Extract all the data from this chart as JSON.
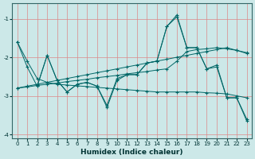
{
  "title": "",
  "xlabel": "Humidex (Indice chaleur)",
  "bg_color": "#cce8e8",
  "grid_color": "#ff9999",
  "line_color": "#006666",
  "xlim": [
    -0.5,
    23.5
  ],
  "ylim": [
    -4.1,
    -0.6
  ],
  "yticks": [
    -4,
    -3,
    -2,
    -1
  ],
  "xticks": [
    0,
    1,
    2,
    3,
    4,
    5,
    6,
    7,
    8,
    9,
    10,
    11,
    12,
    13,
    14,
    15,
    16,
    17,
    18,
    19,
    20,
    21,
    22,
    23
  ],
  "s1_x": [
    0,
    1,
    2,
    3,
    4,
    5,
    6,
    7,
    8,
    9,
    10,
    11,
    12,
    13,
    14,
    15,
    16,
    17,
    18,
    19,
    20,
    21,
    22,
    23
  ],
  "s1_y": [
    -1.6,
    -2.25,
    -2.75,
    -1.95,
    -2.6,
    -2.9,
    -2.7,
    -2.65,
    -2.75,
    -3.25,
    -2.55,
    -2.45,
    -2.45,
    -2.15,
    -2.1,
    -1.2,
    -0.95,
    -1.75,
    -1.75,
    -2.3,
    -2.25,
    -3.05,
    -3.05,
    -3.6
  ],
  "s2_x": [
    0,
    1,
    2,
    3,
    4,
    5,
    6,
    7,
    8,
    9,
    10,
    11,
    12,
    13,
    14,
    15,
    16,
    17,
    18,
    19,
    20,
    21,
    22,
    23
  ],
  "s2_y": [
    -1.6,
    -2.1,
    -2.55,
    -2.65,
    -2.7,
    -2.72,
    -2.74,
    -2.76,
    -2.78,
    -2.8,
    -2.82,
    -2.84,
    -2.86,
    -2.88,
    -2.9,
    -2.9,
    -2.9,
    -2.9,
    -2.9,
    -2.92,
    -2.93,
    -2.95,
    -3.0,
    -3.05
  ],
  "s3_x": [
    0,
    1,
    2,
    3,
    4,
    5,
    6,
    7,
    8,
    9,
    10,
    11,
    12,
    13,
    14,
    15,
    16,
    17,
    18,
    19,
    20,
    21,
    22,
    23
  ],
  "s3_y": [
    -2.8,
    -2.77,
    -2.73,
    -2.7,
    -2.67,
    -2.63,
    -2.6,
    -2.57,
    -2.53,
    -2.5,
    -2.47,
    -2.43,
    -2.4,
    -2.37,
    -2.33,
    -2.3,
    -2.1,
    -1.85,
    -1.8,
    -1.78,
    -1.75,
    -1.78,
    -1.82,
    -1.88
  ],
  "s4_x": [
    2,
    3,
    4,
    5,
    6,
    7,
    8,
    9,
    10,
    11,
    12,
    13,
    14,
    15,
    16,
    17,
    18,
    19,
    20,
    21,
    22,
    23
  ],
  "s4_y": [
    -2.75,
    -1.95,
    -2.6,
    -2.9,
    -2.7,
    -2.65,
    -2.75,
    -3.3,
    -2.6,
    -2.45,
    -2.45,
    -2.15,
    -2.1,
    -1.2,
    -0.9,
    -1.75,
    -1.75,
    -2.3,
    -2.2,
    -3.05,
    -3.05,
    -3.65
  ],
  "s5_x": [
    0,
    1,
    2,
    3,
    4,
    5,
    6,
    7,
    8,
    9,
    10,
    11,
    12,
    13,
    14,
    15,
    16,
    17,
    18,
    19,
    20,
    21,
    22,
    23
  ],
  "s5_y": [
    -2.8,
    -2.75,
    -2.7,
    -2.65,
    -2.6,
    -2.55,
    -2.5,
    -2.45,
    -2.4,
    -2.35,
    -2.3,
    -2.25,
    -2.2,
    -2.15,
    -2.1,
    -2.05,
    -2.0,
    -1.95,
    -1.9,
    -1.85,
    -1.8,
    -1.75,
    -1.82,
    -1.9
  ]
}
